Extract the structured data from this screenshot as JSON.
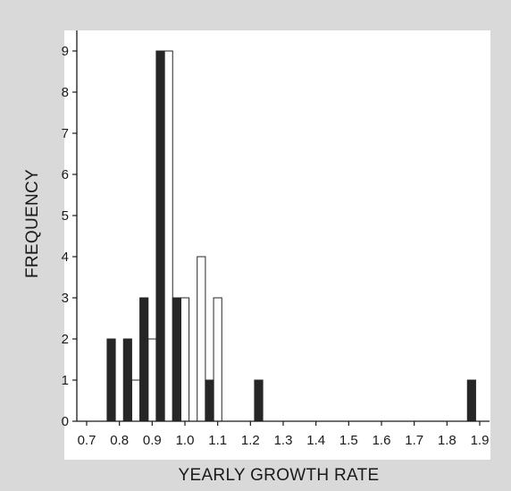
{
  "chart_data": {
    "type": "bar",
    "title": "",
    "xlabel": "YEARLY GROWTH RATE",
    "ylabel": "FREQUENCY",
    "xlim": [
      0.67,
      1.93
    ],
    "ylim": [
      0,
      9.5
    ],
    "x_ticks": [
      "0.7",
      "0.8",
      "0.9",
      "1.0",
      "1.1",
      "1.2",
      "1.3",
      "1.4",
      "1.5",
      "1.6",
      "1.7",
      "1.8",
      "1.9"
    ],
    "y_ticks": [
      "0",
      "1",
      "2",
      "3",
      "4",
      "5",
      "6",
      "7",
      "8",
      "9"
    ],
    "grid": false,
    "legend": "none",
    "bar_width": 0.025,
    "colors": {
      "filled": "#262626",
      "open": "#ffffff",
      "stroke": "#262626"
    },
    "series": [
      {
        "fill": "filled",
        "x": [
          0.775,
          0.825,
          0.875,
          0.925,
          0.975,
          1.075,
          1.225,
          1.875
        ],
        "values": [
          2,
          2,
          3,
          9,
          3,
          1,
          1,
          1
        ]
      },
      {
        "fill": "open",
        "x": [
          0.85,
          0.9,
          0.95,
          1.0,
          1.05,
          1.1
        ],
        "values": [
          1,
          2,
          9,
          3,
          4,
          3
        ]
      }
    ]
  }
}
